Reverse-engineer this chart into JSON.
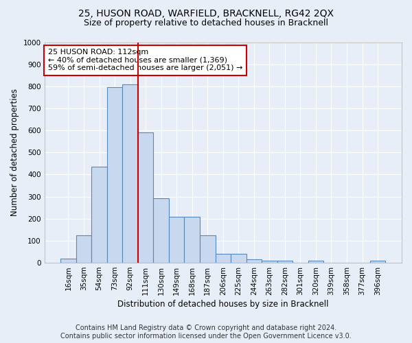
{
  "title": "25, HUSON ROAD, WARFIELD, BRACKNELL, RG42 2QX",
  "subtitle": "Size of property relative to detached houses in Bracknell",
  "xlabel": "Distribution of detached houses by size in Bracknell",
  "ylabel": "Number of detached properties",
  "bar_labels": [
    "16sqm",
    "35sqm",
    "54sqm",
    "73sqm",
    "92sqm",
    "111sqm",
    "130sqm",
    "149sqm",
    "168sqm",
    "187sqm",
    "206sqm",
    "225sqm",
    "244sqm",
    "263sqm",
    "282sqm",
    "301sqm",
    "320sqm",
    "339sqm",
    "358sqm",
    "377sqm",
    "396sqm"
  ],
  "bar_heights": [
    20,
    125,
    435,
    795,
    810,
    590,
    292,
    210,
    210,
    125,
    40,
    40,
    15,
    10,
    10,
    0,
    10,
    0,
    0,
    0,
    10
  ],
  "bar_color": "#c8d8ee",
  "bar_edge_color": "#5588bb",
  "vline_index": 4,
  "vline_color": "#cc0000",
  "annotation_text": "25 HUSON ROAD: 112sqm\n← 40% of detached houses are smaller (1,369)\n59% of semi-detached houses are larger (2,051) →",
  "annotation_box_color": "#ffffff",
  "annotation_box_edge": "#cc0000",
  "ylim": [
    0,
    1000
  ],
  "yticks": [
    0,
    100,
    200,
    300,
    400,
    500,
    600,
    700,
    800,
    900,
    1000
  ],
  "footer_line1": "Contains HM Land Registry data © Crown copyright and database right 2024.",
  "footer_line2": "Contains public sector information licensed under the Open Government Licence v3.0.",
  "background_color": "#e8eef8",
  "plot_bg_color": "#e8eef8",
  "grid_color": "#ffffff",
  "title_fontsize": 10,
  "subtitle_fontsize": 9,
  "axis_label_fontsize": 8.5,
  "tick_fontsize": 7.5,
  "footer_fontsize": 7,
  "annotation_fontsize": 8
}
